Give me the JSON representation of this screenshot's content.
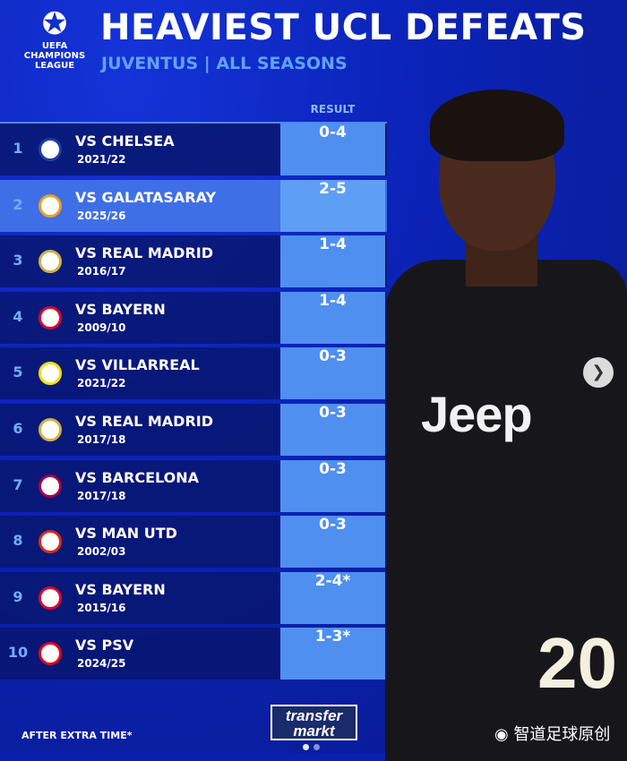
{
  "header": {
    "logo_text": "CHAMPIONS LEAGUE",
    "logo_small": "UEFA",
    "title": "HEAVIEST UCL DEFEATS",
    "subtitle": "JUVENTUS | ALL SEASONS",
    "result_header": "RESULT"
  },
  "rows": [
    {
      "rank": "1",
      "opponent": "VS CHELSEA",
      "season": "2021/22",
      "result": "0-4",
      "crest_color": "#1d3fa0"
    },
    {
      "rank": "2",
      "opponent": "VS GALATASARAY",
      "season": "2025/26",
      "result": "2-5",
      "crest_color": "#e8a020"
    },
    {
      "rank": "3",
      "opponent": "VS REAL MADRID",
      "season": "2016/17",
      "result": "1-4",
      "crest_color": "#d4b040"
    },
    {
      "rank": "4",
      "opponent": "VS BAYERN",
      "season": "2009/10",
      "result": "1-4",
      "crest_color": "#dc052d"
    },
    {
      "rank": "5",
      "opponent": "VS VILLARREAL",
      "season": "2021/22",
      "result": "0-3",
      "crest_color": "#f5e000"
    },
    {
      "rank": "6",
      "opponent": "VS REAL MADRID",
      "season": "2017/18",
      "result": "0-3",
      "crest_color": "#d4b040"
    },
    {
      "rank": "7",
      "opponent": "VS BARCELONA",
      "season": "2017/18",
      "result": "0-3",
      "crest_color": "#a50044"
    },
    {
      "rank": "8",
      "opponent": "VS MAN UTD",
      "season": "2002/03",
      "result": "0-3",
      "crest_color": "#da291c"
    },
    {
      "rank": "9",
      "opponent": "VS BAYERN",
      "season": "2015/16",
      "result": "2-4*",
      "crest_color": "#dc052d"
    },
    {
      "rank": "10",
      "opponent": "VS PSV",
      "season": "2024/25",
      "result": "1-3*",
      "crest_color": "#e3001b"
    }
  ],
  "highlighted_rank": "2",
  "footer": {
    "note": "AFTER EXTRA TIME*",
    "source_logo_top": "transfer",
    "source_logo_bottom": "markt",
    "watermark": "智道足球原创"
  },
  "player": {
    "sponsor": "Jeep",
    "shirt_number": "20"
  },
  "carousel": {
    "next_icon": "chevron-right-icon",
    "pages": 2,
    "current_page": 1
  }
}
